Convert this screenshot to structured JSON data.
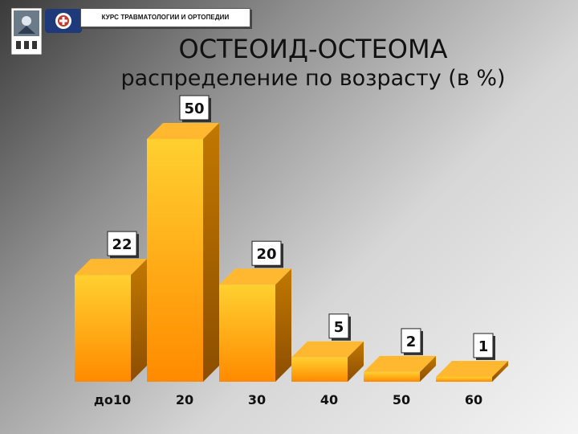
{
  "header": {
    "course_label": "КУРС ТРАВМАТОЛОГИИ И ОРТОПЕДИИ",
    "logo_icon": "university-emblem-icon",
    "badge_icon": "medical-badge-icon"
  },
  "slide": {
    "title": "ОСТЕОИД-ОСТЕОМА",
    "subtitle": "распределение по возрасту (в %)"
  },
  "colors": {
    "bar_front_top": "#FFD030",
    "bar_front_bottom": "#FF8A00",
    "bar_side": "#B86800",
    "bar_top": "#FFB830"
  },
  "chart_data": {
    "type": "bar",
    "title": "",
    "xlabel": "",
    "ylabel": "",
    "categories": [
      "до10",
      "20",
      "30",
      "40",
      "50",
      "60"
    ],
    "values": [
      22,
      50,
      20,
      5,
      2,
      1
    ],
    "data_labels": [
      "22",
      "50",
      "20",
      "5",
      "2",
      "1"
    ],
    "ylim": [
      0,
      50
    ],
    "grid": false,
    "legend": "none",
    "style": "3d"
  }
}
